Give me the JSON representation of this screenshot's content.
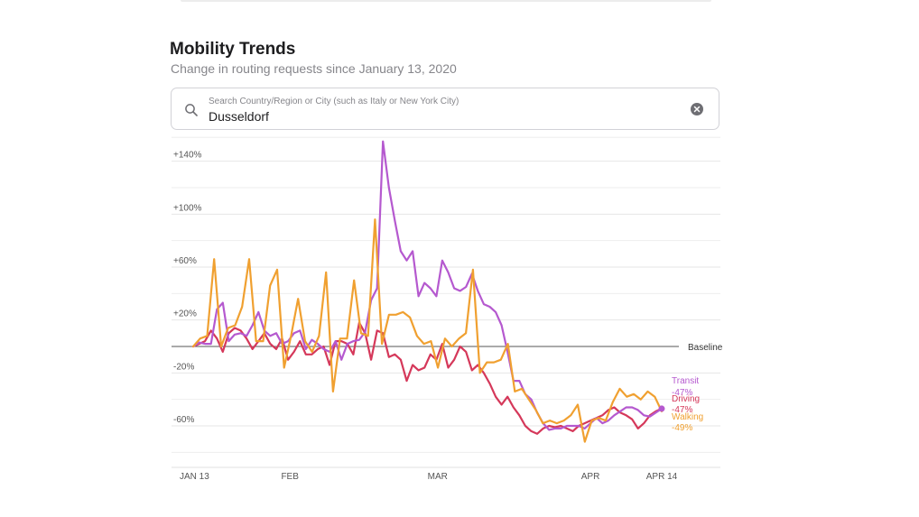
{
  "header": {
    "title": "Mobility Trends",
    "subtitle": "Change in routing requests since January 13, 2020"
  },
  "search": {
    "label": "Search Country/Region or City (such as Italy or New York City)",
    "value": "Dusseldorf"
  },
  "chart_data": {
    "type": "line",
    "title": "",
    "xlabel": "",
    "ylabel": "",
    "ylim": [
      -80,
      158
    ],
    "yticks": [
      140,
      100,
      60,
      20,
      -20,
      -60
    ],
    "ytick_labels": [
      "+140%",
      "+100%",
      "+60%",
      "+20%",
      "-20%",
      "-60%"
    ],
    "xlim": [
      0,
      92
    ],
    "xticks": [
      0,
      19,
      48,
      78,
      92
    ],
    "xtick_labels": [
      "JAN 13",
      "FEB",
      "MAR",
      "APR",
      "APR 14"
    ],
    "baseline": {
      "value": 0,
      "label": "Baseline"
    },
    "grid": true,
    "series": [
      {
        "name": "Transit",
        "end_label": "-47%",
        "color": "#b559cf",
        "values": [
          0,
          3,
          2,
          2,
          28,
          33,
          4,
          9,
          10,
          8,
          16,
          26,
          12,
          8,
          10,
          2,
          4,
          10,
          12,
          -2,
          5,
          2,
          -2,
          -4,
          4,
          -10,
          2,
          4,
          5,
          11,
          35,
          44,
          155,
          120,
          95,
          72,
          65,
          72,
          38,
          48,
          44,
          38,
          65,
          56,
          44,
          42,
          45,
          55,
          42,
          32,
          30,
          26,
          16,
          -4,
          -26,
          -26,
          -36,
          -40,
          -50,
          -58,
          -63,
          -62,
          -62,
          -60,
          -60,
          -60,
          -62,
          -58,
          -54,
          -58,
          -56,
          -52,
          -49,
          -46,
          -46,
          -48,
          -52,
          -53,
          -50,
          -47
        ]
      },
      {
        "name": "Driving",
        "end_label": "-47%",
        "color": "#d5385a",
        "values": [
          0,
          2,
          4,
          12,
          6,
          -4,
          10,
          14,
          12,
          6,
          -2,
          4,
          10,
          2,
          -2,
          6,
          -10,
          -4,
          4,
          -6,
          -6,
          -2,
          0,
          -14,
          4,
          4,
          2,
          -6,
          18,
          10,
          -10,
          12,
          10,
          -8,
          -6,
          -10,
          -26,
          -14,
          -18,
          -16,
          -6,
          -10,
          2,
          -16,
          -10,
          0,
          -4,
          -18,
          -14,
          -20,
          -28,
          -38,
          -44,
          -38,
          -46,
          -52,
          -60,
          -64,
          -66,
          -62,
          -60,
          -61,
          -60,
          -62,
          -64,
          -60,
          -58,
          -56,
          -54,
          -52,
          -48,
          -46,
          -50,
          -52,
          -55,
          -62,
          -58,
          -52,
          -49,
          -47
        ]
      },
      {
        "name": "Walking",
        "end_label": "-49%",
        "color": "#f0a030",
        "values": [
          0,
          6,
          8,
          66,
          0,
          14,
          16,
          30,
          66,
          4,
          4,
          46,
          58,
          -16,
          8,
          36,
          4,
          -4,
          8,
          56,
          -34,
          6,
          6,
          50,
          10,
          8,
          96,
          2,
          24,
          24,
          26,
          22,
          8,
          2,
          4,
          -16,
          6,
          0,
          6,
          10,
          58,
          -20,
          -12,
          -12,
          -10,
          2,
          -34,
          -32,
          -40,
          -48,
          -58,
          -56,
          -58,
          -56,
          -52,
          -44,
          -72,
          -56,
          -54,
          -56,
          -42,
          -32,
          -38,
          -36,
          -40,
          -34,
          -38,
          -49
        ]
      }
    ]
  }
}
